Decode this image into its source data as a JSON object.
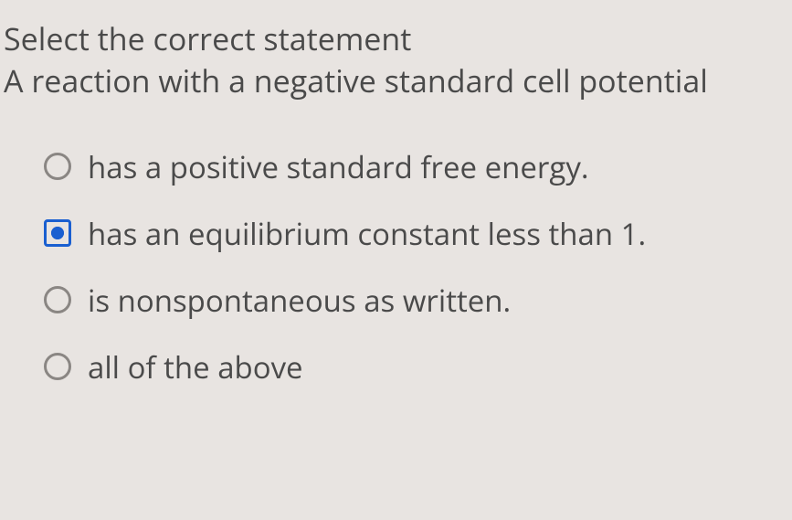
{
  "question": {
    "line1": "Select the correct statement",
    "line2": "A reaction with a negative standard cell potential"
  },
  "options": [
    {
      "label": "has a positive standard free energy.",
      "selected": false
    },
    {
      "label": "has an equilibrium constant less than 1.",
      "selected": true
    },
    {
      "label": "is nonspontaneous as written.",
      "selected": false
    },
    {
      "label": "all of the above",
      "selected": false
    }
  ],
  "colors": {
    "background": "#e8e4e1",
    "text": "#4a4a4a",
    "radio_border": "#8a8683",
    "selected": "#1a5fd0"
  },
  "typography": {
    "prompt_fontsize": 34,
    "option_fontsize": 33,
    "font_family": "Segoe UI"
  }
}
